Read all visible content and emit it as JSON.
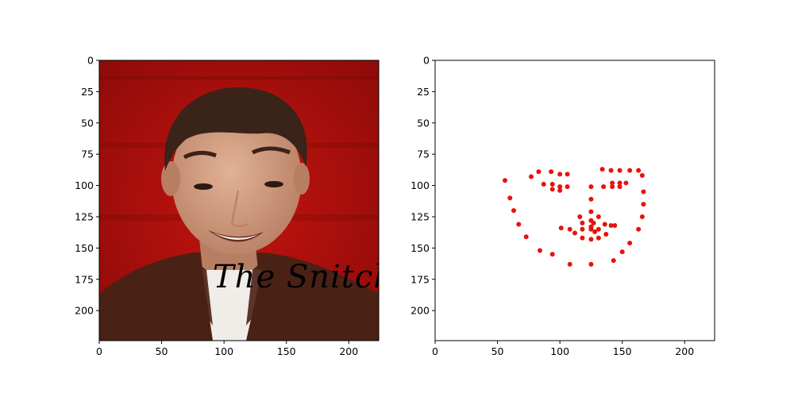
{
  "chart_data": [
    {
      "type": "image",
      "xlim": [
        0,
        224
      ],
      "ylim": [
        224,
        0
      ],
      "xticks": [
        0,
        50,
        100,
        150,
        200
      ],
      "yticks": [
        0,
        25,
        50,
        75,
        100,
        125,
        150,
        175,
        200
      ],
      "image": {
        "watermark": "The Snitch.",
        "palette": {
          "background": "#b10f0c",
          "background_dark": "#7a0907",
          "skin": "#d8a588",
          "skin_shadow": "#b87e62",
          "hair": "#3a2318",
          "jacket": "#4a2115",
          "shirt": "#f0ece8",
          "watermark": "#c7a742"
        }
      }
    },
    {
      "type": "scatter",
      "xlim": [
        0,
        224
      ],
      "ylim": [
        224,
        0
      ],
      "xticks": [
        0,
        50,
        100,
        150,
        200
      ],
      "yticks": [
        0,
        25,
        50,
        75,
        100,
        125,
        150,
        175,
        200
      ],
      "marker_color": "#e8120c",
      "points": [
        [
          56,
          96
        ],
        [
          60,
          110
        ],
        [
          63,
          120
        ],
        [
          67,
          131
        ],
        [
          73,
          141
        ],
        [
          84,
          152
        ],
        [
          94,
          155
        ],
        [
          108,
          163
        ],
        [
          125,
          163
        ],
        [
          143,
          160
        ],
        [
          150,
          153
        ],
        [
          156,
          146
        ],
        [
          163,
          135
        ],
        [
          166,
          125
        ],
        [
          167,
          115
        ],
        [
          167,
          105
        ],
        [
          166,
          92
        ],
        [
          77,
          93
        ],
        [
          83,
          89
        ],
        [
          93,
          89
        ],
        [
          100,
          91
        ],
        [
          106,
          91
        ],
        [
          134,
          87
        ],
        [
          141,
          88
        ],
        [
          148,
          88
        ],
        [
          156,
          88
        ],
        [
          163,
          88
        ],
        [
          125,
          101
        ],
        [
          125,
          111
        ],
        [
          125,
          121
        ],
        [
          125,
          128
        ],
        [
          125,
          133
        ],
        [
          116,
          125
        ],
        [
          118,
          130
        ],
        [
          127,
          130
        ],
        [
          131,
          125
        ],
        [
          136,
          131
        ],
        [
          87,
          99
        ],
        [
          94,
          99
        ],
        [
          100,
          101
        ],
        [
          106,
          101
        ],
        [
          94,
          103
        ],
        [
          100,
          104
        ],
        [
          135,
          101
        ],
        [
          142,
          101
        ],
        [
          148,
          101
        ],
        [
          153,
          98
        ],
        [
          142,
          98
        ],
        [
          148,
          98
        ],
        [
          101,
          134
        ],
        [
          108,
          135
        ],
        [
          112,
          138
        ],
        [
          118,
          135
        ],
        [
          125,
          135
        ],
        [
          131,
          135
        ],
        [
          137,
          139
        ],
        [
          141,
          132
        ],
        [
          144,
          132
        ],
        [
          118,
          142
        ],
        [
          125,
          143
        ],
        [
          131,
          142
        ],
        [
          128,
          137
        ]
      ]
    }
  ]
}
